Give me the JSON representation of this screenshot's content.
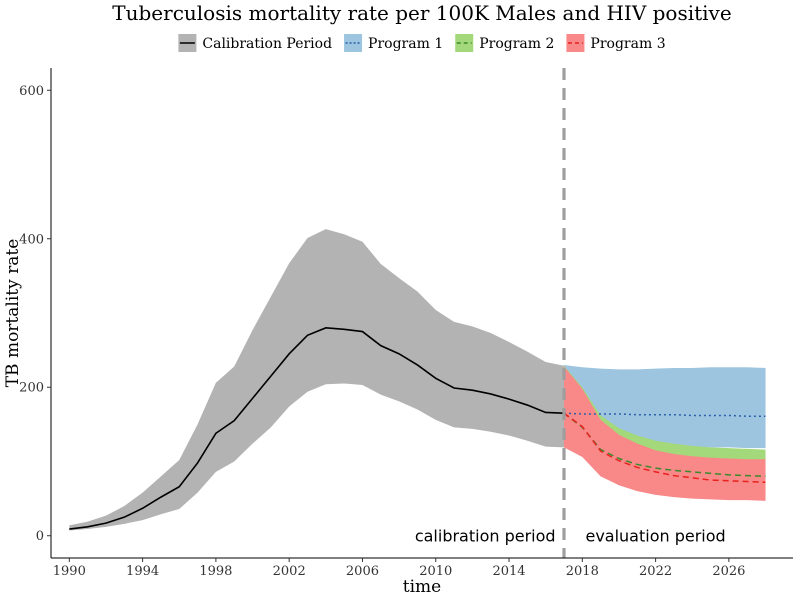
{
  "chart_data": {
    "type": "line",
    "title": "Tuberculosis mortality rate per 100K Males and HIV positive",
    "xlabel": "time",
    "ylabel": "TB mortality rate",
    "xlim": [
      1989,
      2029.5
    ],
    "ylim": [
      -30,
      630
    ],
    "x_ticks": [
      1990,
      1994,
      1998,
      2002,
      2006,
      2010,
      2014,
      2018,
      2022,
      2026
    ],
    "y_ticks": [
      0,
      200,
      400,
      600
    ],
    "grid": false,
    "legend_position": "top",
    "divider_x": 2017,
    "annotations": [
      {
        "text": "calibration period",
        "x": 2012.7,
        "y": 0
      },
      {
        "text": "evaluation period",
        "x": 2022,
        "y": 0
      }
    ],
    "series": [
      {
        "name": "Calibration Period",
        "line_style": "solid",
        "line_color": "#000000",
        "band_color": "#b3b3b3",
        "x": [
          1990,
          1991,
          1992,
          1993,
          1994,
          1995,
          1996,
          1997,
          1998,
          1999,
          2000,
          2001,
          2002,
          2003,
          2004,
          2005,
          2006,
          2007,
          2008,
          2009,
          2010,
          2011,
          2012,
          2013,
          2014,
          2015,
          2016,
          2017
        ],
        "values": [
          9,
          12,
          17,
          25,
          37,
          52,
          66,
          98,
          138,
          155,
          185,
          215,
          245,
          270,
          280,
          278,
          275,
          256,
          245,
          230,
          212,
          199,
          196,
          191,
          184,
          176,
          166,
          165
        ],
        "lower": [
          7,
          9,
          12,
          16,
          21,
          29,
          36,
          58,
          86,
          100,
          124,
          146,
          174,
          194,
          204,
          205,
          203,
          190,
          181,
          170,
          156,
          146,
          144,
          140,
          135,
          128,
          120,
          119
        ],
        "upper": [
          14,
          19,
          27,
          40,
          58,
          80,
          102,
          150,
          206,
          228,
          277,
          322,
          367,
          401,
          413,
          406,
          396,
          366,
          347,
          329,
          304,
          288,
          282,
          273,
          261,
          248,
          234,
          229
        ]
      },
      {
        "name": "Program 1",
        "line_style": "dotted",
        "line_color": "#2b5fa8",
        "band_color": "#9dc5e0",
        "x": [
          2017,
          2018,
          2019,
          2020,
          2021,
          2022,
          2023,
          2024,
          2025,
          2026,
          2027,
          2028
        ],
        "values": [
          165,
          164,
          164,
          164,
          163,
          163,
          163,
          162,
          162,
          162,
          161,
          161
        ],
        "lower": [
          165,
          155,
          140,
          130,
          126,
          123,
          121,
          120,
          119,
          119,
          118,
          118
        ],
        "upper": [
          230,
          227,
          225,
          224,
          224,
          225,
          226,
          226,
          227,
          227,
          227,
          226
        ]
      },
      {
        "name": "Program 2",
        "line_style": "dashed",
        "line_color": "#3a8a2b",
        "band_color": "#a3d87b",
        "x": [
          2017,
          2018,
          2019,
          2020,
          2021,
          2022,
          2023,
          2024,
          2025,
          2026,
          2027,
          2028
        ],
        "values": [
          165,
          146,
          116,
          104,
          96,
          91,
          88,
          86,
          84,
          82,
          81,
          80
        ],
        "lower": [
          120,
          108,
          82,
          70,
          62,
          58,
          55,
          53,
          52,
          51,
          50,
          49
        ],
        "upper": [
          229,
          200,
          162,
          145,
          135,
          128,
          124,
          121,
          119,
          118,
          117,
          116
        ]
      },
      {
        "name": "Program 3",
        "line_style": "dashed",
        "line_color": "#e8221e",
        "band_color": "#f98888",
        "x": [
          2017,
          2018,
          2019,
          2020,
          2021,
          2022,
          2023,
          2024,
          2025,
          2026,
          2027,
          2028
        ],
        "values": [
          165,
          147,
          114,
          101,
          92,
          86,
          81,
          78,
          75,
          74,
          73,
          72
        ],
        "lower": [
          119,
          106,
          80,
          68,
          60,
          55,
          52,
          50,
          49,
          48,
          48,
          47
        ],
        "upper": [
          228,
          198,
          156,
          136,
          124,
          115,
          110,
          107,
          105,
          104,
          103,
          103
        ]
      }
    ]
  }
}
